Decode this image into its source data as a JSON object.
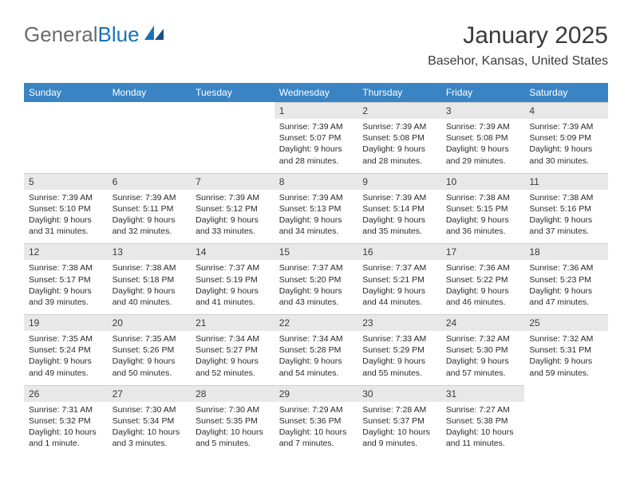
{
  "brand": {
    "part1": "General",
    "part2": "Blue"
  },
  "title": "January 2025",
  "location": "Basehor, Kansas, United States",
  "weekdays": [
    "Sunday",
    "Monday",
    "Tuesday",
    "Wednesday",
    "Thursday",
    "Friday",
    "Saturday"
  ],
  "colors": {
    "header_bg": "#3a84c3",
    "daynum_bg": "#e8e8e8",
    "brand_blue": "#1773b9",
    "brand_gray": "#6b6b6b"
  },
  "weeks": [
    [
      {
        "n": "",
        "lines": []
      },
      {
        "n": "",
        "lines": []
      },
      {
        "n": "",
        "lines": []
      },
      {
        "n": "1",
        "lines": [
          "Sunrise: 7:39 AM",
          "Sunset: 5:07 PM",
          "Daylight: 9 hours and 28 minutes."
        ]
      },
      {
        "n": "2",
        "lines": [
          "Sunrise: 7:39 AM",
          "Sunset: 5:08 PM",
          "Daylight: 9 hours and 28 minutes."
        ]
      },
      {
        "n": "3",
        "lines": [
          "Sunrise: 7:39 AM",
          "Sunset: 5:08 PM",
          "Daylight: 9 hours and 29 minutes."
        ]
      },
      {
        "n": "4",
        "lines": [
          "Sunrise: 7:39 AM",
          "Sunset: 5:09 PM",
          "Daylight: 9 hours and 30 minutes."
        ]
      }
    ],
    [
      {
        "n": "5",
        "lines": [
          "Sunrise: 7:39 AM",
          "Sunset: 5:10 PM",
          "Daylight: 9 hours and 31 minutes."
        ]
      },
      {
        "n": "6",
        "lines": [
          "Sunrise: 7:39 AM",
          "Sunset: 5:11 PM",
          "Daylight: 9 hours and 32 minutes."
        ]
      },
      {
        "n": "7",
        "lines": [
          "Sunrise: 7:39 AM",
          "Sunset: 5:12 PM",
          "Daylight: 9 hours and 33 minutes."
        ]
      },
      {
        "n": "8",
        "lines": [
          "Sunrise: 7:39 AM",
          "Sunset: 5:13 PM",
          "Daylight: 9 hours and 34 minutes."
        ]
      },
      {
        "n": "9",
        "lines": [
          "Sunrise: 7:39 AM",
          "Sunset: 5:14 PM",
          "Daylight: 9 hours and 35 minutes."
        ]
      },
      {
        "n": "10",
        "lines": [
          "Sunrise: 7:38 AM",
          "Sunset: 5:15 PM",
          "Daylight: 9 hours and 36 minutes."
        ]
      },
      {
        "n": "11",
        "lines": [
          "Sunrise: 7:38 AM",
          "Sunset: 5:16 PM",
          "Daylight: 9 hours and 37 minutes."
        ]
      }
    ],
    [
      {
        "n": "12",
        "lines": [
          "Sunrise: 7:38 AM",
          "Sunset: 5:17 PM",
          "Daylight: 9 hours and 39 minutes."
        ]
      },
      {
        "n": "13",
        "lines": [
          "Sunrise: 7:38 AM",
          "Sunset: 5:18 PM",
          "Daylight: 9 hours and 40 minutes."
        ]
      },
      {
        "n": "14",
        "lines": [
          "Sunrise: 7:37 AM",
          "Sunset: 5:19 PM",
          "Daylight: 9 hours and 41 minutes."
        ]
      },
      {
        "n": "15",
        "lines": [
          "Sunrise: 7:37 AM",
          "Sunset: 5:20 PM",
          "Daylight: 9 hours and 43 minutes."
        ]
      },
      {
        "n": "16",
        "lines": [
          "Sunrise: 7:37 AM",
          "Sunset: 5:21 PM",
          "Daylight: 9 hours and 44 minutes."
        ]
      },
      {
        "n": "17",
        "lines": [
          "Sunrise: 7:36 AM",
          "Sunset: 5:22 PM",
          "Daylight: 9 hours and 46 minutes."
        ]
      },
      {
        "n": "18",
        "lines": [
          "Sunrise: 7:36 AM",
          "Sunset: 5:23 PM",
          "Daylight: 9 hours and 47 minutes."
        ]
      }
    ],
    [
      {
        "n": "19",
        "lines": [
          "Sunrise: 7:35 AM",
          "Sunset: 5:24 PM",
          "Daylight: 9 hours and 49 minutes."
        ]
      },
      {
        "n": "20",
        "lines": [
          "Sunrise: 7:35 AM",
          "Sunset: 5:26 PM",
          "Daylight: 9 hours and 50 minutes."
        ]
      },
      {
        "n": "21",
        "lines": [
          "Sunrise: 7:34 AM",
          "Sunset: 5:27 PM",
          "Daylight: 9 hours and 52 minutes."
        ]
      },
      {
        "n": "22",
        "lines": [
          "Sunrise: 7:34 AM",
          "Sunset: 5:28 PM",
          "Daylight: 9 hours and 54 minutes."
        ]
      },
      {
        "n": "23",
        "lines": [
          "Sunrise: 7:33 AM",
          "Sunset: 5:29 PM",
          "Daylight: 9 hours and 55 minutes."
        ]
      },
      {
        "n": "24",
        "lines": [
          "Sunrise: 7:32 AM",
          "Sunset: 5:30 PM",
          "Daylight: 9 hours and 57 minutes."
        ]
      },
      {
        "n": "25",
        "lines": [
          "Sunrise: 7:32 AM",
          "Sunset: 5:31 PM",
          "Daylight: 9 hours and 59 minutes."
        ]
      }
    ],
    [
      {
        "n": "26",
        "lines": [
          "Sunrise: 7:31 AM",
          "Sunset: 5:32 PM",
          "Daylight: 10 hours and 1 minute."
        ]
      },
      {
        "n": "27",
        "lines": [
          "Sunrise: 7:30 AM",
          "Sunset: 5:34 PM",
          "Daylight: 10 hours and 3 minutes."
        ]
      },
      {
        "n": "28",
        "lines": [
          "Sunrise: 7:30 AM",
          "Sunset: 5:35 PM",
          "Daylight: 10 hours and 5 minutes."
        ]
      },
      {
        "n": "29",
        "lines": [
          "Sunrise: 7:29 AM",
          "Sunset: 5:36 PM",
          "Daylight: 10 hours and 7 minutes."
        ]
      },
      {
        "n": "30",
        "lines": [
          "Sunrise: 7:28 AM",
          "Sunset: 5:37 PM",
          "Daylight: 10 hours and 9 minutes."
        ]
      },
      {
        "n": "31",
        "lines": [
          "Sunrise: 7:27 AM",
          "Sunset: 5:38 PM",
          "Daylight: 10 hours and 11 minutes."
        ]
      },
      {
        "n": "",
        "lines": []
      }
    ]
  ]
}
